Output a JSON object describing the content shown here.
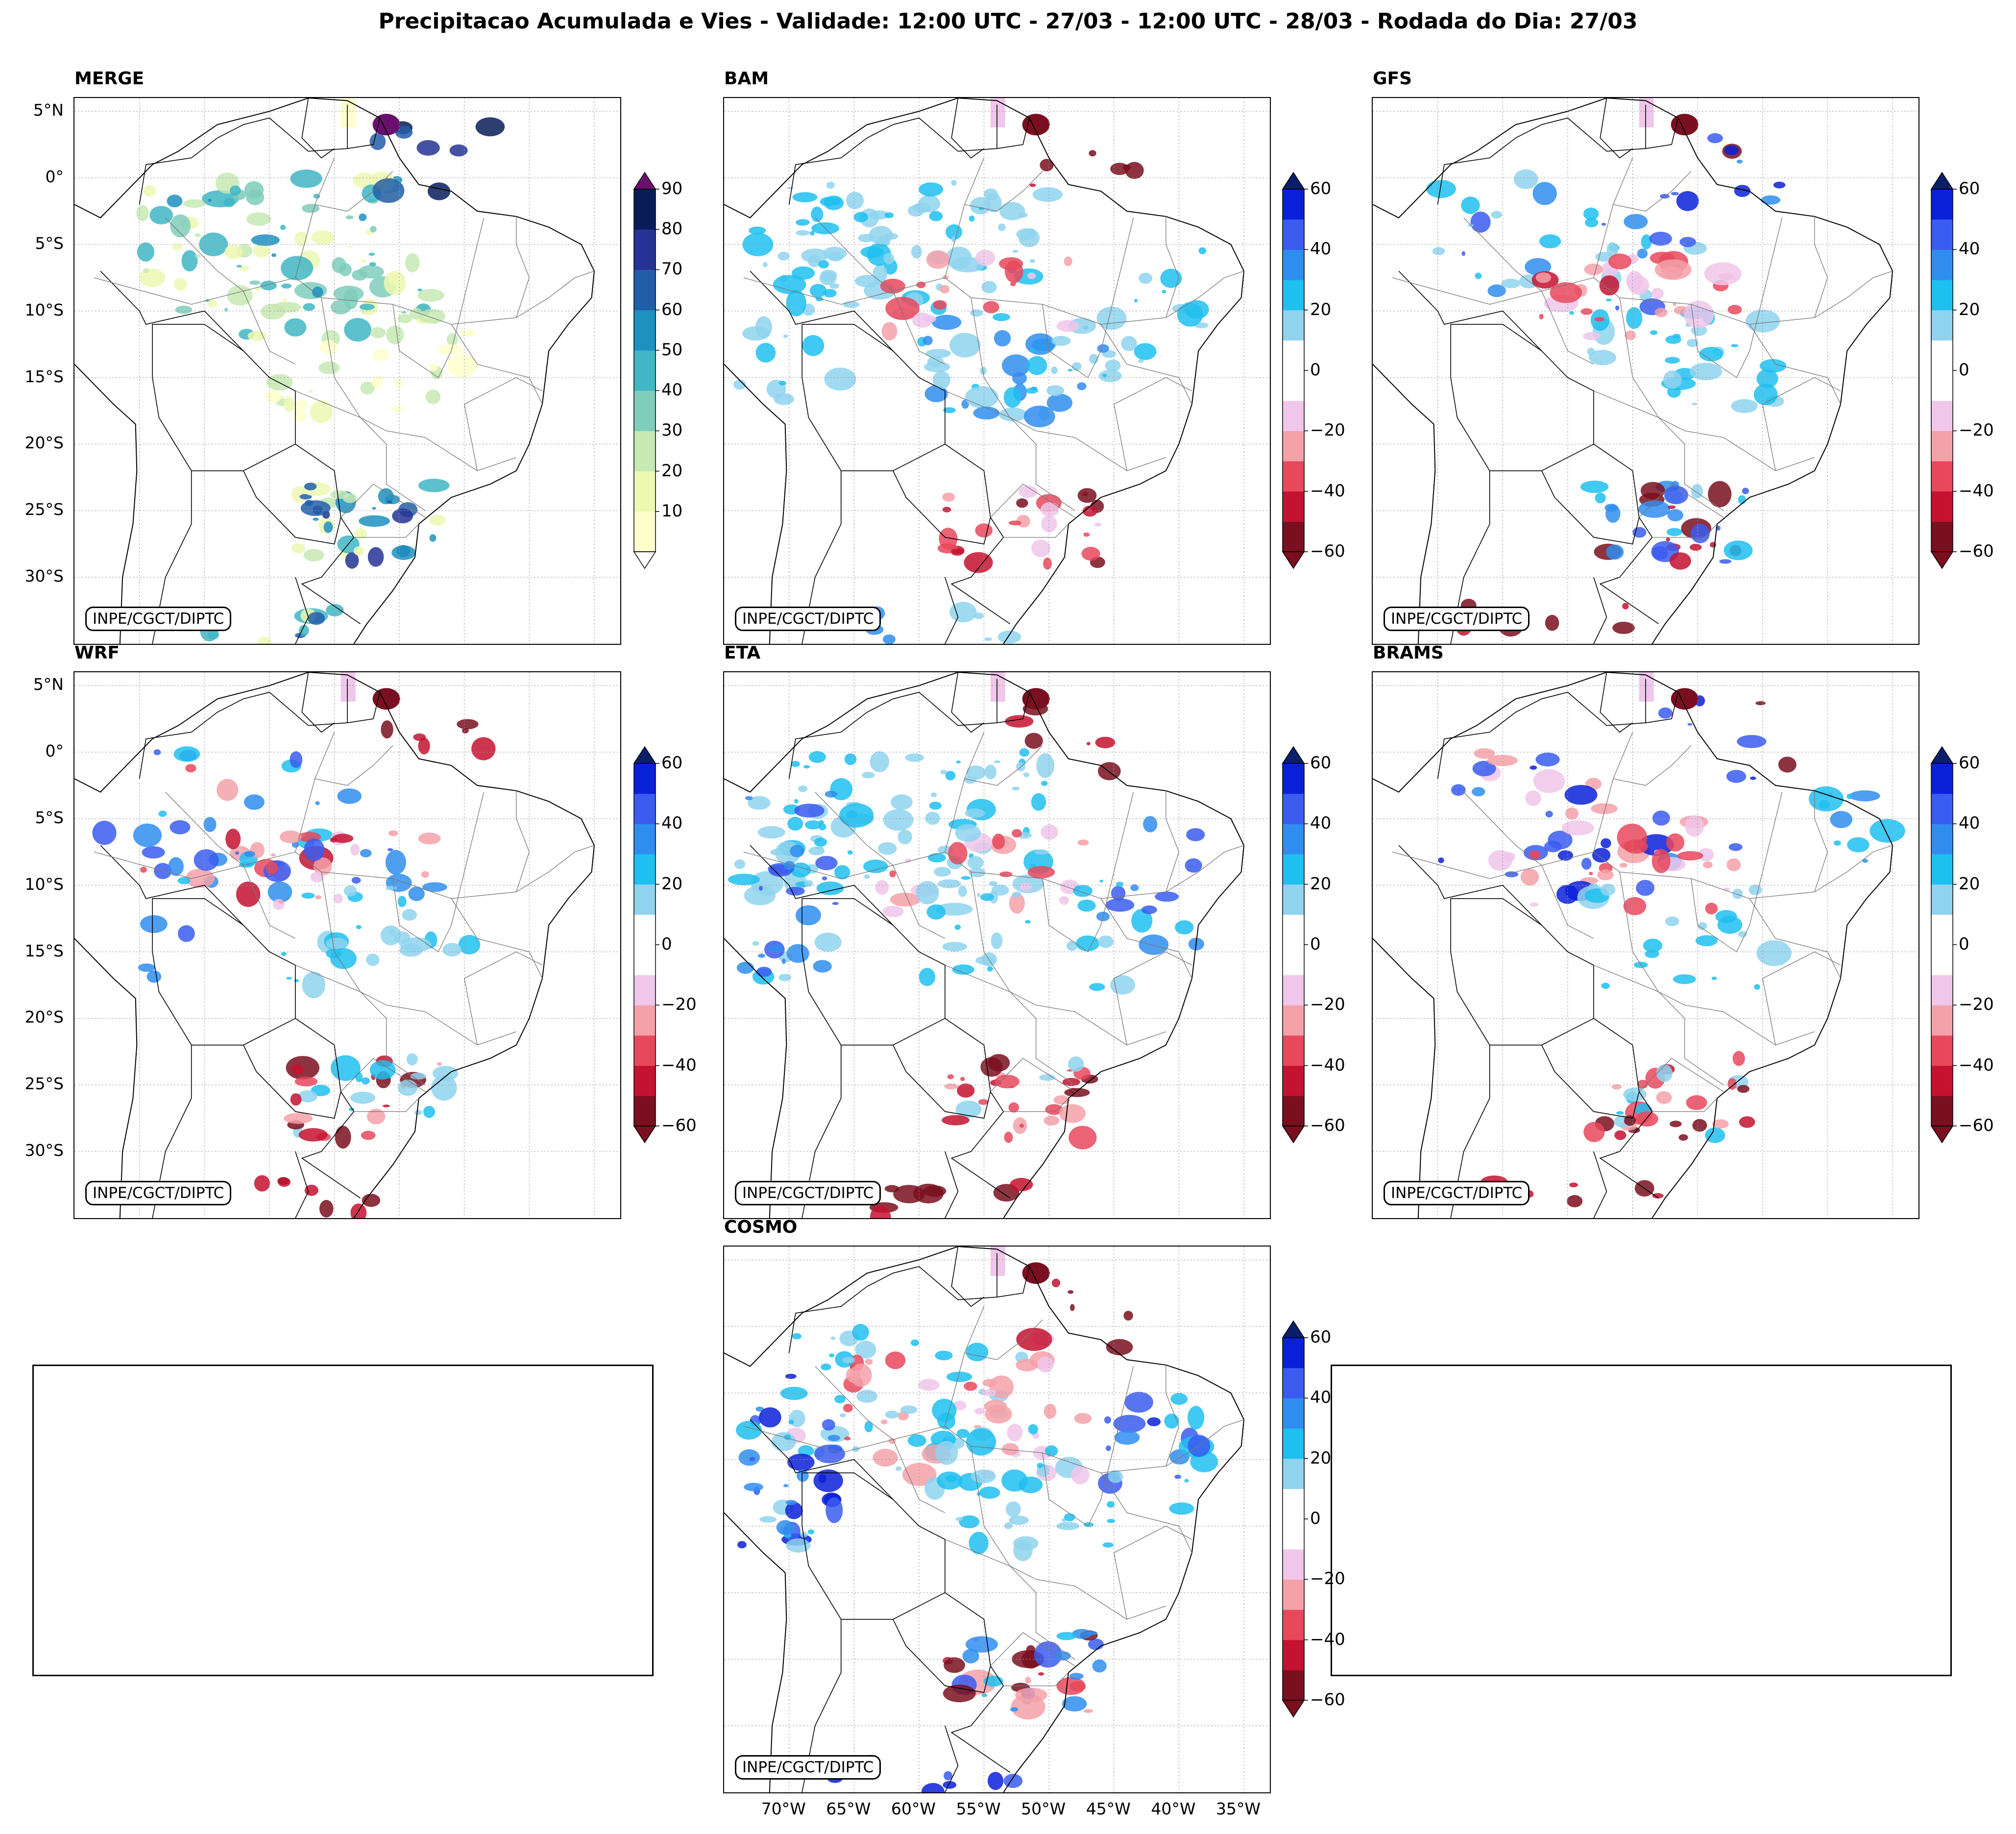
{
  "figure_title": "Precipitacao Acumulada e Vies - Validade: 12:00 UTC - 27/03 - 12:00 UTC - 28/03 - Rodada do Dia: 27/03",
  "credit": "INPE/CGCT/DIPTC",
  "lat_ticks": [
    "5°N",
    "0°",
    "5°S",
    "10°S",
    "15°S",
    "20°S",
    "25°S",
    "30°S"
  ],
  "lon_ticks": [
    "70°W",
    "65°W",
    "60°W",
    "55°W",
    "50°W",
    "45°W",
    "40°W",
    "35°W"
  ],
  "merge_scale": {
    "ticks": [
      "90",
      "80",
      "70",
      "60",
      "50",
      "40",
      "30",
      "20",
      "10"
    ],
    "colors": [
      "#ffffcc",
      "#edf8b1",
      "#c7e9b4",
      "#7fcdbb",
      "#41b6c4",
      "#1d91c0",
      "#225ea8",
      "#253494",
      "#081d58"
    ],
    "over_color": "#6a0f6e",
    "under_color": "#ffffff"
  },
  "bias_scale": {
    "ticks": [
      "60",
      "40",
      "20",
      "0",
      "−20",
      "−40",
      "−60"
    ],
    "colors": [
      "#7a0f1f",
      "#c41230",
      "#e8485c",
      "#f5a1a8",
      "#f0c6ea",
      "#ffffff",
      "#ffffff",
      "#8fd3ee",
      "#1ec0f0",
      "#2f8df0",
      "#3a5cf0",
      "#0a20d8"
    ],
    "over_color": "#0a1f6b",
    "under_color": "#7a0f1f"
  },
  "panels": {
    "merge": {
      "label": "MERGE"
    },
    "bam": {
      "label": "BAM"
    },
    "gfs": {
      "label": "GFS"
    },
    "wrf": {
      "label": "WRF"
    },
    "eta": {
      "label": "ETA"
    },
    "brams": {
      "label": "BRAMS"
    },
    "cosmo": {
      "label": "COSMO"
    }
  }
}
